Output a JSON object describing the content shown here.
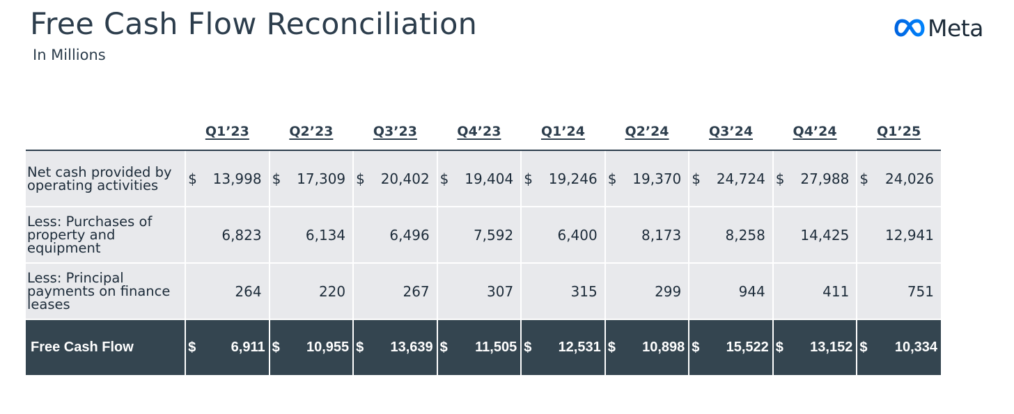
{
  "title": "Free Cash Flow Reconciliation",
  "subtitle": "In Millions",
  "brand": {
    "name": "Meta",
    "logo_icon": "meta-infinity-icon",
    "colors": {
      "logo_gradient_start": "#0064e0",
      "logo_gradient_end": "#0082fb"
    }
  },
  "colors": {
    "row_background": "#e8e9ec",
    "total_row_background": "#344550",
    "header_text": "#2c3d4c"
  },
  "table": {
    "columns": [
      "Q1’23",
      "Q2’23",
      "Q3’23",
      "Q4’23",
      "Q1’24",
      "Q2’24",
      "Q3’24",
      "Q4’24",
      "Q1’25"
    ],
    "currency_symbol": "$",
    "rows": [
      {
        "label": "Net cash provided by operating activities",
        "show_currency": true,
        "values": [
          "13,998",
          "17,309",
          "20,402",
          "19,404",
          "19,246",
          "19,370",
          "24,724",
          "27,988",
          "24,026"
        ]
      },
      {
        "label": "Less: Purchases of property and equipment",
        "show_currency": false,
        "values": [
          "6,823",
          "6,134",
          "6,496",
          "7,592",
          "6,400",
          "8,173",
          "8,258",
          "14,425",
          "12,941"
        ]
      },
      {
        "label": "Less: Principal payments on finance leases",
        "show_currency": false,
        "values": [
          "264",
          "220",
          "267",
          "307",
          "315",
          "299",
          "944",
          "411",
          "751"
        ]
      }
    ],
    "total": {
      "label": "Free Cash Flow",
      "show_currency": true,
      "values": [
        "6,911",
        "10,955",
        "13,639",
        "11,505",
        "12,531",
        "10,898",
        "15,522",
        "13,152",
        "10,334"
      ]
    }
  }
}
